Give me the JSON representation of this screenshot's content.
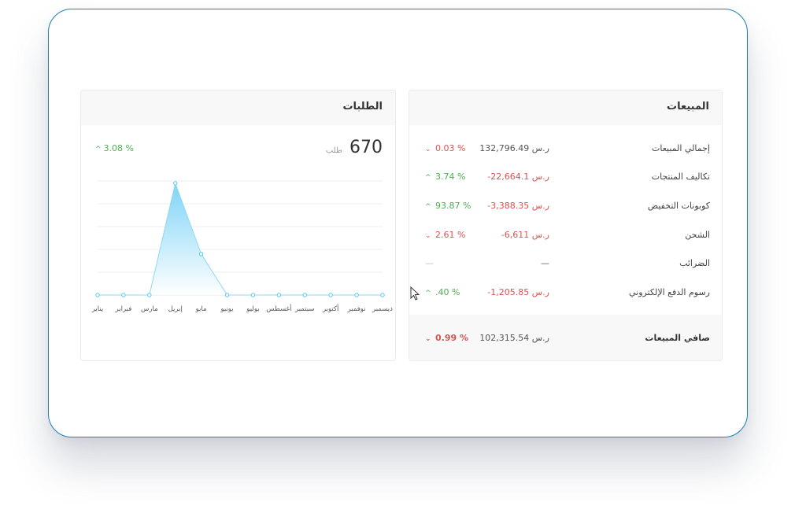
{
  "sales": {
    "title": "المبيعات",
    "rows": [
      {
        "label": "إجمالي المبيعات",
        "value": "132,796.49 ر.س",
        "pct": "0.03 %",
        "trend": "down",
        "negative": false
      },
      {
        "label": "تكاليف المنتجات",
        "value": "-22,664.1 ر.س",
        "pct": "3.74 %",
        "trend": "up",
        "negative": true
      },
      {
        "label": "كوبونات التخفيض",
        "value": "-3,388.35 ر.س",
        "pct": "93.87 %",
        "trend": "up",
        "negative": true
      },
      {
        "label": "الشحن",
        "value": "-6,611 ر.س",
        "pct": "2.61 %",
        "trend": "down",
        "negative": true
      },
      {
        "label": "الضرائب",
        "value": "—",
        "pct": "—",
        "trend": "none",
        "negative": false
      },
      {
        "label": "رسوم الدفع الإلكتروني",
        "value": "-1,205.85 ر.س",
        "pct": ".40 %",
        "trend": "up",
        "negative": true
      }
    ],
    "net": {
      "label": "صافي المبيعات",
      "value": "102,315.54 ر.س",
      "pct": "0.99 %",
      "trend": "down"
    }
  },
  "orders": {
    "title": "الطلبات",
    "count": "670",
    "unit": "طلب",
    "pct": "3.08 %"
  },
  "chart_data": {
    "type": "area",
    "categories": [
      "يناير",
      "فبراير",
      "مارس",
      "إبريل",
      "مايو",
      "يونيو",
      "يوليو",
      "أغسطس",
      "سبتمبر",
      "أكتوبر",
      "نوفمبر",
      "ديسمبر"
    ],
    "values": [
      0,
      0,
      0,
      490,
      180,
      0,
      0,
      0,
      0,
      0,
      0,
      0
    ],
    "ylim": [
      0,
      500
    ],
    "grid": true
  },
  "colors": {
    "up": "#4caf50",
    "down": "#d9534f",
    "line": "#8fd8f2",
    "fill_top": "#7fd4f7",
    "frame_border": "#1f7fb6"
  }
}
